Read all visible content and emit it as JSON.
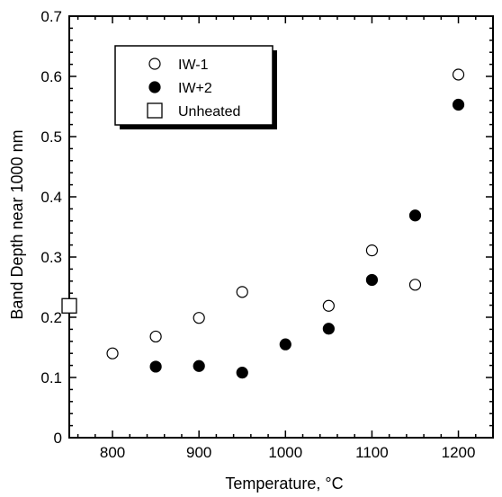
{
  "chart_data": {
    "type": "scatter",
    "title": "",
    "xlabel": "Temperature,  °C",
    "ylabel": "Band Depth near 1000 nm",
    "xlim": [
      750,
      1240
    ],
    "ylim": [
      0,
      0.7
    ],
    "x_ticks": [
      {
        "value": 800,
        "label": "800"
      },
      {
        "value": 900,
        "label": "900"
      },
      {
        "value": 1000,
        "label": "1000"
      },
      {
        "value": 1100,
        "label": "1100"
      },
      {
        "value": 1200,
        "label": "1200"
      }
    ],
    "y_ticks": [
      {
        "value": 0,
        "label": "0"
      },
      {
        "value": 0.1,
        "label": "0.1"
      },
      {
        "value": 0.2,
        "label": "0.2"
      },
      {
        "value": 0.3,
        "label": "0.3"
      },
      {
        "value": 0.4,
        "label": "0.4"
      },
      {
        "value": 0.5,
        "label": "0.5"
      },
      {
        "value": 0.6,
        "label": "0.6"
      },
      {
        "value": 0.7,
        "label": "0.7"
      }
    ],
    "grid": false,
    "legend": "top-left",
    "series": [
      {
        "name": "IW-1",
        "marker": "open-circle",
        "points": [
          {
            "x": 800,
            "y": 0.14
          },
          {
            "x": 850,
            "y": 0.168
          },
          {
            "x": 900,
            "y": 0.199
          },
          {
            "x": 950,
            "y": 0.242
          },
          {
            "x": 1050,
            "y": 0.219
          },
          {
            "x": 1100,
            "y": 0.311
          },
          {
            "x": 1150,
            "y": 0.254
          },
          {
            "x": 1200,
            "y": 0.603
          }
        ]
      },
      {
        "name": "IW+2",
        "marker": "filled-circle",
        "points": [
          {
            "x": 850,
            "y": 0.118
          },
          {
            "x": 900,
            "y": 0.119
          },
          {
            "x": 950,
            "y": 0.108
          },
          {
            "x": 1000,
            "y": 0.155
          },
          {
            "x": 1050,
            "y": 0.181
          },
          {
            "x": 1100,
            "y": 0.262
          },
          {
            "x": 1150,
            "y": 0.369
          },
          {
            "x": 1200,
            "y": 0.553
          }
        ]
      },
      {
        "name": "Unheated",
        "marker": "open-square",
        "points": [
          {
            "x": 750,
            "y": 0.219
          }
        ]
      }
    ]
  }
}
